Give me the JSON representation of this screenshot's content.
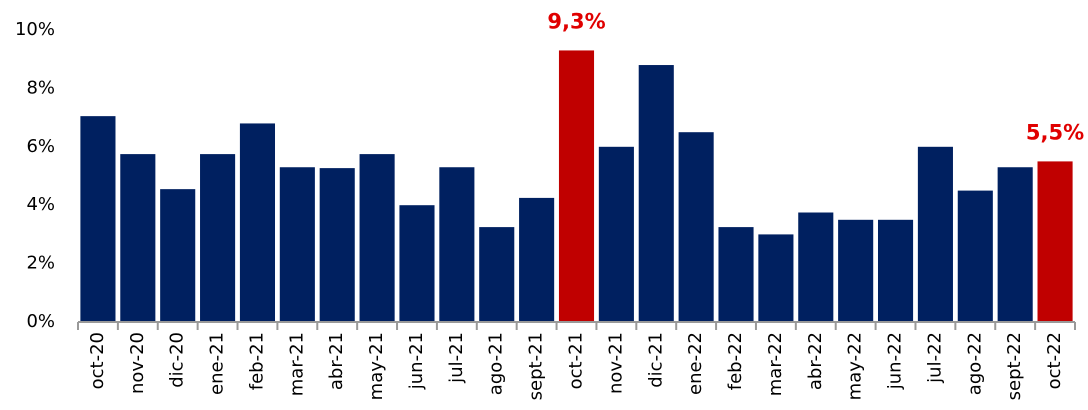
{
  "chart_data": {
    "type": "bar",
    "categories": [
      "oct-20",
      "nov-20",
      "dic-20",
      "ene-21",
      "feb-21",
      "mar-21",
      "abr-21",
      "may-21",
      "jun-21",
      "jul-21",
      "ago-21",
      "sept-21",
      "oct-21",
      "nov-21",
      "dic-21",
      "ene-22",
      "feb-22",
      "mar-22",
      "abr-22",
      "may-22",
      "jun-22",
      "jul-22",
      "ago-22",
      "sept-22",
      "oct-22"
    ],
    "values": [
      7.05,
      5.75,
      4.55,
      5.75,
      6.8,
      5.3,
      5.27,
      5.75,
      4.0,
      5.3,
      3.25,
      4.25,
      9.3,
      6.0,
      8.8,
      6.5,
      3.25,
      3.0,
      3.75,
      3.5,
      3.5,
      6.0,
      4.5,
      5.3,
      5.5
    ],
    "value_labels": [
      null,
      null,
      null,
      null,
      null,
      null,
      null,
      null,
      null,
      null,
      null,
      null,
      "9,3%",
      null,
      null,
      null,
      null,
      null,
      null,
      null,
      null,
      null,
      null,
      null,
      "5,5%"
    ],
    "colors": [
      "#002060",
      "#002060",
      "#002060",
      "#002060",
      "#002060",
      "#002060",
      "#002060",
      "#002060",
      "#002060",
      "#002060",
      "#002060",
      "#002060",
      "#c00000",
      "#002060",
      "#002060",
      "#002060",
      "#002060",
      "#002060",
      "#002060",
      "#002060",
      "#002060",
      "#002060",
      "#002060",
      "#002060",
      "#c00000"
    ],
    "ylim": [
      0,
      10
    ],
    "yticks": [
      {
        "value": 0,
        "label": "0%"
      },
      {
        "value": 2,
        "label": "2%"
      },
      {
        "value": 4,
        "label": "4%"
      },
      {
        "value": 6,
        "label": "6%"
      },
      {
        "value": 8,
        "label": "8%"
      },
      {
        "value": 10,
        "label": "10%"
      }
    ],
    "grid": false
  }
}
